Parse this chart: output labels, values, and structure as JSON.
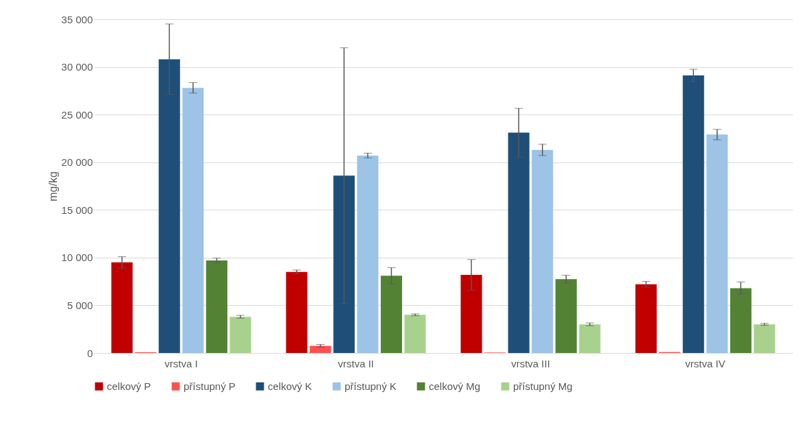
{
  "chart_data": {
    "type": "bar",
    "ylabel": "mg/kg",
    "categories": [
      "vrstva I",
      "vrstva II",
      "vrstva III",
      "vrstva IV"
    ],
    "series": [
      {
        "name": "celkový P",
        "color": "#c00000",
        "values": [
          9500,
          8500,
          8200,
          7200
        ],
        "errors": [
          600,
          200,
          1600,
          300
        ]
      },
      {
        "name": "přístupný P",
        "color": "#ff5050",
        "values": [
          80,
          750,
          50,
          100
        ],
        "errors": [
          null,
          150,
          null,
          null
        ]
      },
      {
        "name": "celkový K",
        "color": "#1f4e79",
        "values": [
          30800,
          18600,
          23100,
          29100
        ],
        "errors": [
          3700,
          13400,
          2550,
          650
        ]
      },
      {
        "name": "přístupný K",
        "color": "#9dc3e6",
        "values": [
          27800,
          20700,
          21300,
          22900
        ],
        "errors": [
          550,
          250,
          600,
          550
        ]
      },
      {
        "name": "celkový Mg",
        "color": "#548235",
        "values": [
          9700,
          8100,
          7750,
          6800
        ],
        "errors": [
          250,
          850,
          400,
          650
        ]
      },
      {
        "name": "přístupný Mg",
        "color": "#a9d18e",
        "values": [
          3800,
          4000,
          3000,
          3000
        ],
        "errors": [
          150,
          100,
          150,
          100
        ]
      }
    ],
    "ylim": [
      0,
      35000
    ],
    "yticks": [
      0,
      {
        "value": 5000,
        "label": "5 000"
      },
      {
        "value": 10000,
        "label": "10 000"
      },
      {
        "value": 15000,
        "label": "15 000"
      },
      {
        "value": 20000,
        "label": "20 000"
      },
      {
        "value": 25000,
        "label": "25 000"
      },
      {
        "value": 30000,
        "label": "30 000"
      },
      {
        "value": 35000,
        "label": "35 000"
      }
    ],
    "grid": "y",
    "legend": "bottom"
  }
}
